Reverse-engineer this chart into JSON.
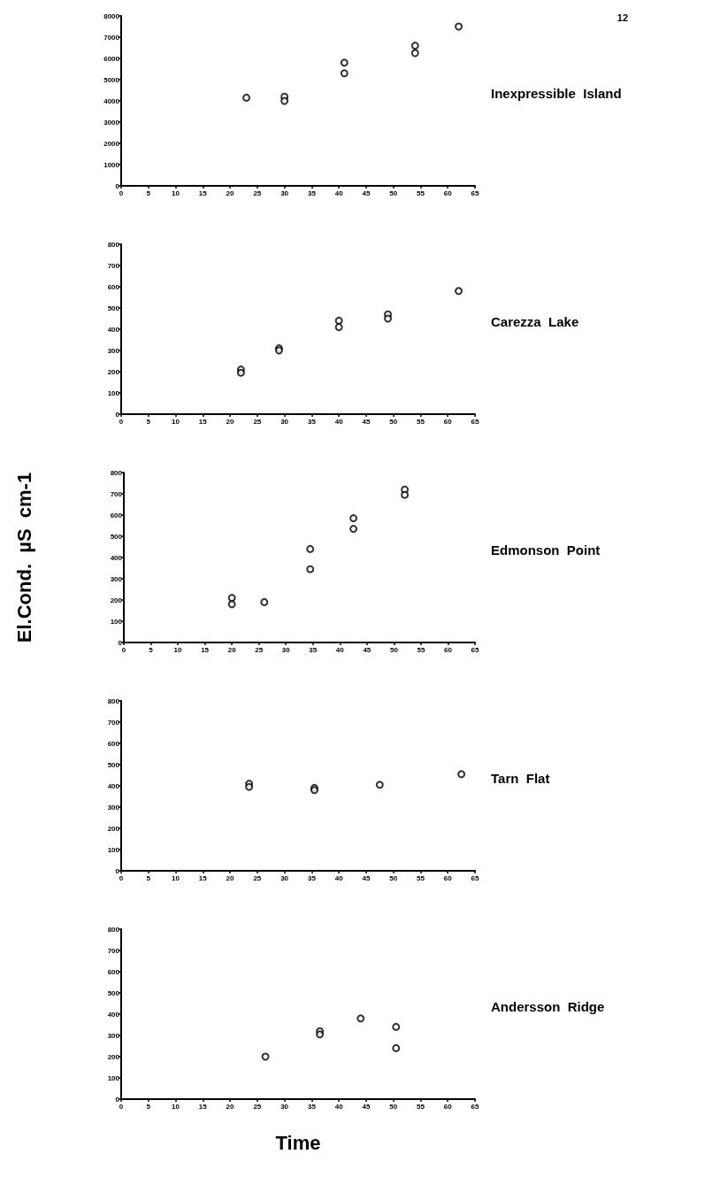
{
  "chart_data": [
    {
      "type": "scatter",
      "annotations": [
        "12",
        "Inexpressible  Island"
      ],
      "marker": "circle",
      "xlim": [
        0,
        65
      ],
      "xticks": [
        0,
        5,
        10,
        15,
        20,
        25,
        30,
        35,
        40,
        45,
        50,
        55,
        60,
        65
      ],
      "ylim": [
        0,
        8000
      ],
      "yticks": [
        0,
        1000,
        2000,
        3000,
        4000,
        5000,
        6000,
        7000,
        8000
      ],
      "series": [
        {
          "color": "#000000",
          "x": [
            23,
            30,
            30,
            41,
            41,
            54,
            54,
            62
          ],
          "values": [
            4150,
            4200,
            4000,
            5800,
            5300,
            6600,
            6250,
            7500
          ]
        }
      ]
    },
    {
      "type": "scatter",
      "annotations": [
        "Carezza  Lake"
      ],
      "marker": "circle",
      "xlim": [
        0,
        65
      ],
      "xticks": [
        0,
        5,
        10,
        15,
        20,
        25,
        30,
        35,
        40,
        45,
        50,
        55,
        60,
        65
      ],
      "ylim": [
        0,
        800
      ],
      "yticks": [
        0,
        100,
        200,
        300,
        400,
        500,
        600,
        700,
        800
      ],
      "series": [
        {
          "color": "#000000",
          "x": [
            22,
            22,
            29,
            29,
            40,
            40,
            49,
            49,
            62
          ],
          "values": [
            210,
            195,
            310,
            300,
            440,
            410,
            470,
            450,
            580
          ]
        }
      ]
    },
    {
      "type": "scatter",
      "annotations": [
        "Edmonson  Point"
      ],
      "ylabel": "El.Cond.  µS  cm-1",
      "marker": "circle",
      "xlim": [
        0,
        65
      ],
      "xticks": [
        0,
        5,
        10,
        15,
        20,
        25,
        30,
        35,
        40,
        45,
        50,
        55,
        60,
        65
      ],
      "ylim": [
        0,
        800
      ],
      "yticks": [
        0,
        100,
        200,
        300,
        400,
        500,
        600,
        700,
        800
      ],
      "series": [
        {
          "color": "#000000",
          "x": [
            20,
            20,
            26,
            34.5,
            34.5,
            42.5,
            42.5,
            52,
            52
          ],
          "values": [
            210,
            180,
            190,
            440,
            345,
            585,
            535,
            720,
            695
          ]
        }
      ]
    },
    {
      "type": "scatter",
      "annotations": [
        "Tarn  Flat"
      ],
      "marker": "circle",
      "xlim": [
        0,
        65
      ],
      "xticks": [
        0,
        5,
        10,
        15,
        20,
        25,
        30,
        35,
        40,
        45,
        50,
        55,
        60,
        65
      ],
      "ylim": [
        0,
        800
      ],
      "yticks": [
        0,
        100,
        200,
        300,
        400,
        500,
        600,
        700,
        800
      ],
      "series": [
        {
          "color": "#000000",
          "x": [
            23.5,
            23.5,
            35.5,
            35.5,
            47.5,
            62.5
          ],
          "values": [
            410,
            395,
            390,
            380,
            405,
            455
          ]
        }
      ]
    },
    {
      "type": "scatter",
      "annotations": [
        "Andersson  Ridge"
      ],
      "xlabel": "Time",
      "marker": "circle",
      "xlim": [
        0,
        65
      ],
      "xticks": [
        0,
        5,
        10,
        15,
        20,
        25,
        30,
        35,
        40,
        45,
        50,
        55,
        60,
        65
      ],
      "ylim": [
        0,
        800
      ],
      "yticks": [
        0,
        100,
        200,
        300,
        400,
        500,
        600,
        700,
        800
      ],
      "series": [
        {
          "color": "#000000",
          "x": [
            26.5,
            36.5,
            36.5,
            44,
            50.5,
            50.5
          ],
          "values": [
            200,
            320,
            305,
            380,
            340,
            240
          ]
        }
      ]
    }
  ]
}
